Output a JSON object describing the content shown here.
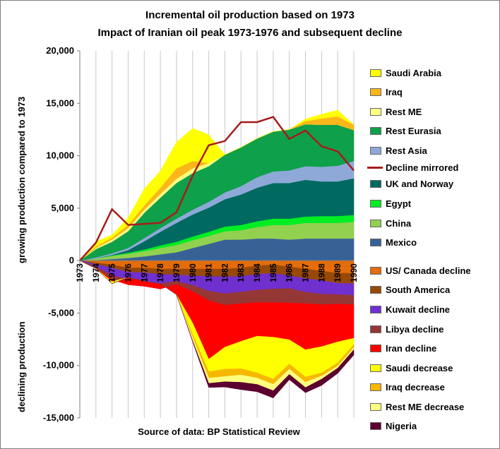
{
  "chart_data": {
    "type": "area",
    "title": "Incremental oil production based on 1973",
    "subtitle": "Impact of Iranian oil peak 1973-1976 and subsequent decline",
    "ylabel_top": "growing production      compared to 1973",
    "ylabel_bottom": "declining production",
    "source": "Source of data: BP Statistical Review",
    "ylim": [
      -15000,
      20000
    ],
    "yticks": [
      20000,
      15000,
      10000,
      5000,
      0,
      -5000,
      -10000,
      -15000
    ],
    "ytick_labels": [
      "20,000",
      "15,000",
      "10,000",
      "5,000",
      "0",
      "-5,000",
      "-10,000",
      "-15,000"
    ],
    "x": [
      1973,
      1974,
      1975,
      1976,
      1977,
      1978,
      1979,
      1980,
      1981,
      1982,
      1983,
      1984,
      1985,
      1986,
      1987,
      1988,
      1989,
      1990
    ],
    "x_labels": [
      "1973",
      "1974",
      "1975",
      "1976",
      "1977",
      "1978",
      "1979",
      "1980",
      "1981",
      "1982",
      "1983",
      "1984",
      "1985",
      "1986",
      "1987",
      "1988",
      "1989",
      "1990"
    ],
    "positive_series": [
      {
        "name": "Mexico",
        "color": "#386296",
        "values": [
          0,
          50,
          150,
          250,
          400,
          600,
          800,
          1200,
          1600,
          2000,
          2000,
          2100,
          2100,
          2000,
          2100,
          2100,
          2100,
          2100
        ]
      },
      {
        "name": "China",
        "color": "#92d050",
        "values": [
          0,
          150,
          300,
          400,
          500,
          600,
          700,
          750,
          750,
          800,
          900,
          1100,
          1300,
          1400,
          1500,
          1500,
          1500,
          1600
        ]
      },
      {
        "name": "Egypt",
        "color": "#00ee22",
        "values": [
          0,
          0,
          50,
          100,
          150,
          250,
          300,
          350,
          400,
          450,
          500,
          550,
          600,
          600,
          600,
          650,
          650,
          650
        ]
      },
      {
        "name": "UK and Norway",
        "color": "#006a60",
        "values": [
          0,
          0,
          50,
          250,
          800,
          1300,
          1800,
          2100,
          2300,
          2600,
          2900,
          3200,
          3400,
          3400,
          3500,
          3300,
          3300,
          3500
        ]
      },
      {
        "name": "Rest Asia",
        "color": "#8ea9d8",
        "values": [
          0,
          100,
          150,
          200,
          300,
          350,
          400,
          450,
          550,
          650,
          800,
          1000,
          1100,
          1200,
          1300,
          1400,
          1500,
          1650
        ]
      },
      {
        "name": "Rest Eurasia",
        "color": "#0ea04a",
        "values": [
          0,
          800,
          1100,
          1600,
          2400,
          2900,
          3400,
          3500,
          3400,
          3600,
          3700,
          3700,
          3800,
          3900,
          4000,
          4000,
          3900,
          2950
        ]
      },
      {
        "name": "Rest ME",
        "color": "#ffff80",
        "values": [
          0,
          100,
          200,
          300,
          300,
          350,
          400,
          450,
          300,
          0,
          0,
          0,
          0,
          0,
          0,
          0,
          0,
          0
        ]
      },
      {
        "name": "Iraq",
        "color": "#fbb61b",
        "values": [
          0,
          150,
          200,
          300,
          400,
          600,
          1000,
          700,
          0,
          0,
          0,
          0,
          0,
          0,
          300,
          600,
          800,
          500
        ]
      },
      {
        "name": "Saudi Arabia",
        "color": "#ffff00",
        "values": [
          0,
          450,
          250,
          700,
          1600,
          1600,
          2500,
          3100,
          2700,
          0,
          0,
          0,
          0,
          0,
          200,
          400,
          600,
          0
        ]
      }
    ],
    "negative_series": [
      {
        "name": "US/ Canada decline",
        "color": "#e46c0a",
        "values": [
          0,
          -200,
          -400,
          -700,
          -700,
          -800,
          -800,
          -800,
          -800,
          -800,
          -700,
          -500,
          -400,
          -600,
          -800,
          -1000,
          -1200,
          -1200
        ]
      },
      {
        "name": "South America",
        "color": "#984807",
        "values": [
          0,
          -150,
          -300,
          -400,
          -450,
          -500,
          -550,
          -650,
          -700,
          -750,
          -800,
          -800,
          -800,
          -850,
          -900,
          -900,
          -950,
          -1000
        ]
      },
      {
        "name": "Kuwait decline",
        "color": "#7030d0",
        "values": [
          0,
          -200,
          -700,
          -700,
          -800,
          -900,
          -600,
          -900,
          -1400,
          -1600,
          -1500,
          -1500,
          -1500,
          -1200,
          -1300,
          -1300,
          -1100,
          -1100
        ]
      },
      {
        "name": "Libya decline",
        "color": "#953735",
        "values": [
          0,
          -200,
          -400,
          -500,
          -500,
          -500,
          -300,
          -600,
          -900,
          -1100,
          -1100,
          -1200,
          -1300,
          -1400,
          -1100,
          -1000,
          -900,
          -900
        ]
      },
      {
        "name": "Iran decline",
        "color": "#ff0000",
        "values": [
          0,
          0,
          -200,
          700,
          500,
          500,
          -1000,
          -3000,
          -5600,
          -4000,
          -3600,
          -3200,
          -3300,
          -3500,
          -4400,
          -4000,
          -3600,
          -3200
        ]
      },
      {
        "name": "Saudi decrease",
        "color": "#ffff00",
        "values": [
          0,
          0,
          -200,
          0,
          0,
          0,
          0,
          -1100,
          -1200,
          -2100,
          -2600,
          -3500,
          -4000,
          -2300,
          -2600,
          -2500,
          -2000,
          -600
        ]
      },
      {
        "name": "Iraq  decrease",
        "color": "#f5b800",
        "values": [
          0,
          0,
          0,
          0,
          0,
          0,
          0,
          -300,
          -600,
          -700,
          -600,
          -500,
          -500,
          -500,
          -500,
          -300,
          -300,
          -300
        ]
      },
      {
        "name": "Rest ME decrease",
        "color": "#ffff80",
        "values": [
          0,
          0,
          0,
          0,
          0,
          0,
          0,
          -300,
          -500,
          -500,
          -700,
          -600,
          -600,
          -500,
          -500,
          -300,
          -200,
          -200
        ]
      },
      {
        "name": "Nigeria",
        "color": "#5c0030",
        "values": [
          0,
          0,
          0,
          0,
          0,
          0,
          0,
          -100,
          -400,
          -500,
          -700,
          -700,
          -700,
          -500,
          -500,
          -600,
          -500,
          -500
        ]
      }
    ],
    "line_series": {
      "name": "Decline mirrored",
      "color": "#a61c1c",
      "values": [
        0,
        1700,
        4900,
        3400,
        3500,
        3600,
        4600,
        8100,
        11000,
        11400,
        13200,
        13200,
        13700,
        11600,
        12400,
        10900,
        10400,
        8600
      ]
    },
    "legend_position": "right",
    "grid": "vertical"
  }
}
